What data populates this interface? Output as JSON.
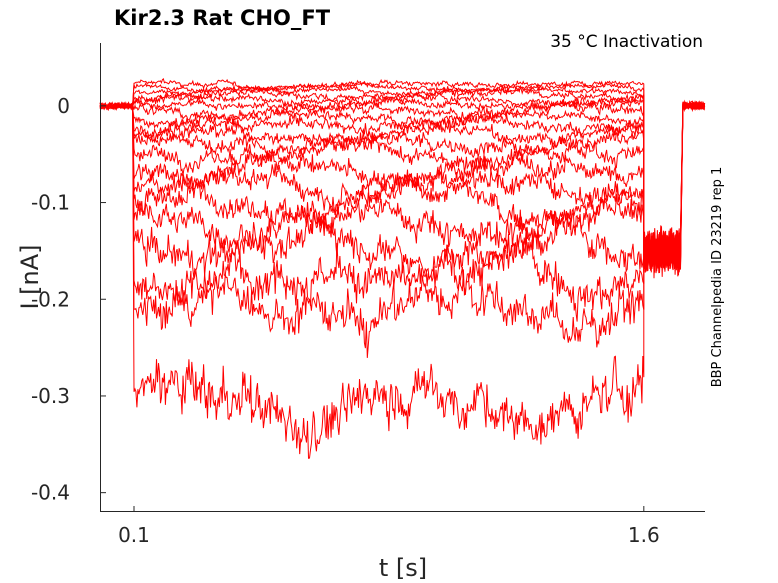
{
  "chart_data": {
    "type": "line",
    "title": "Kir2.3  Rat  CHO_FT",
    "subtitle": "35 °C  Inactivation",
    "xlabel": "t [s]",
    "ylabel": "I [nA]",
    "side_note": "BBP Channelpedia ID 23219 rep 1",
    "xlim": [
      0.0,
      1.78
    ],
    "ylim": [
      -0.42,
      0.065
    ],
    "x_ticks": [
      0.1,
      1.6
    ],
    "x_tick_labels": [
      "0.1",
      "1.6"
    ],
    "y_ticks": [
      0,
      -0.1,
      -0.2,
      -0.3,
      -0.4
    ],
    "y_tick_labels": [
      "0",
      "-0.1",
      "-0.2",
      "-0.3",
      "-0.4"
    ],
    "grid": false,
    "line_color": "#ff0000",
    "holding_current": 0.0,
    "pulse_start": 0.1,
    "pulse_end": 1.6,
    "tail_end": 1.78,
    "tail_current": -0.15,
    "sweep_count": 20,
    "series_levels": [
      0.022,
      0.019,
      0.015,
      0.011,
      0.006,
      0.001,
      -0.005,
      -0.012,
      -0.02,
      -0.028,
      -0.038,
      -0.05,
      -0.065,
      -0.08,
      -0.1,
      -0.12,
      -0.145,
      -0.175,
      -0.21,
      -0.31
    ],
    "series_noise": [
      0.002,
      0.002,
      0.002,
      0.003,
      0.003,
      0.003,
      0.004,
      0.004,
      0.005,
      0.005,
      0.006,
      0.007,
      0.008,
      0.009,
      0.01,
      0.011,
      0.013,
      0.015,
      0.016,
      0.02
    ]
  }
}
